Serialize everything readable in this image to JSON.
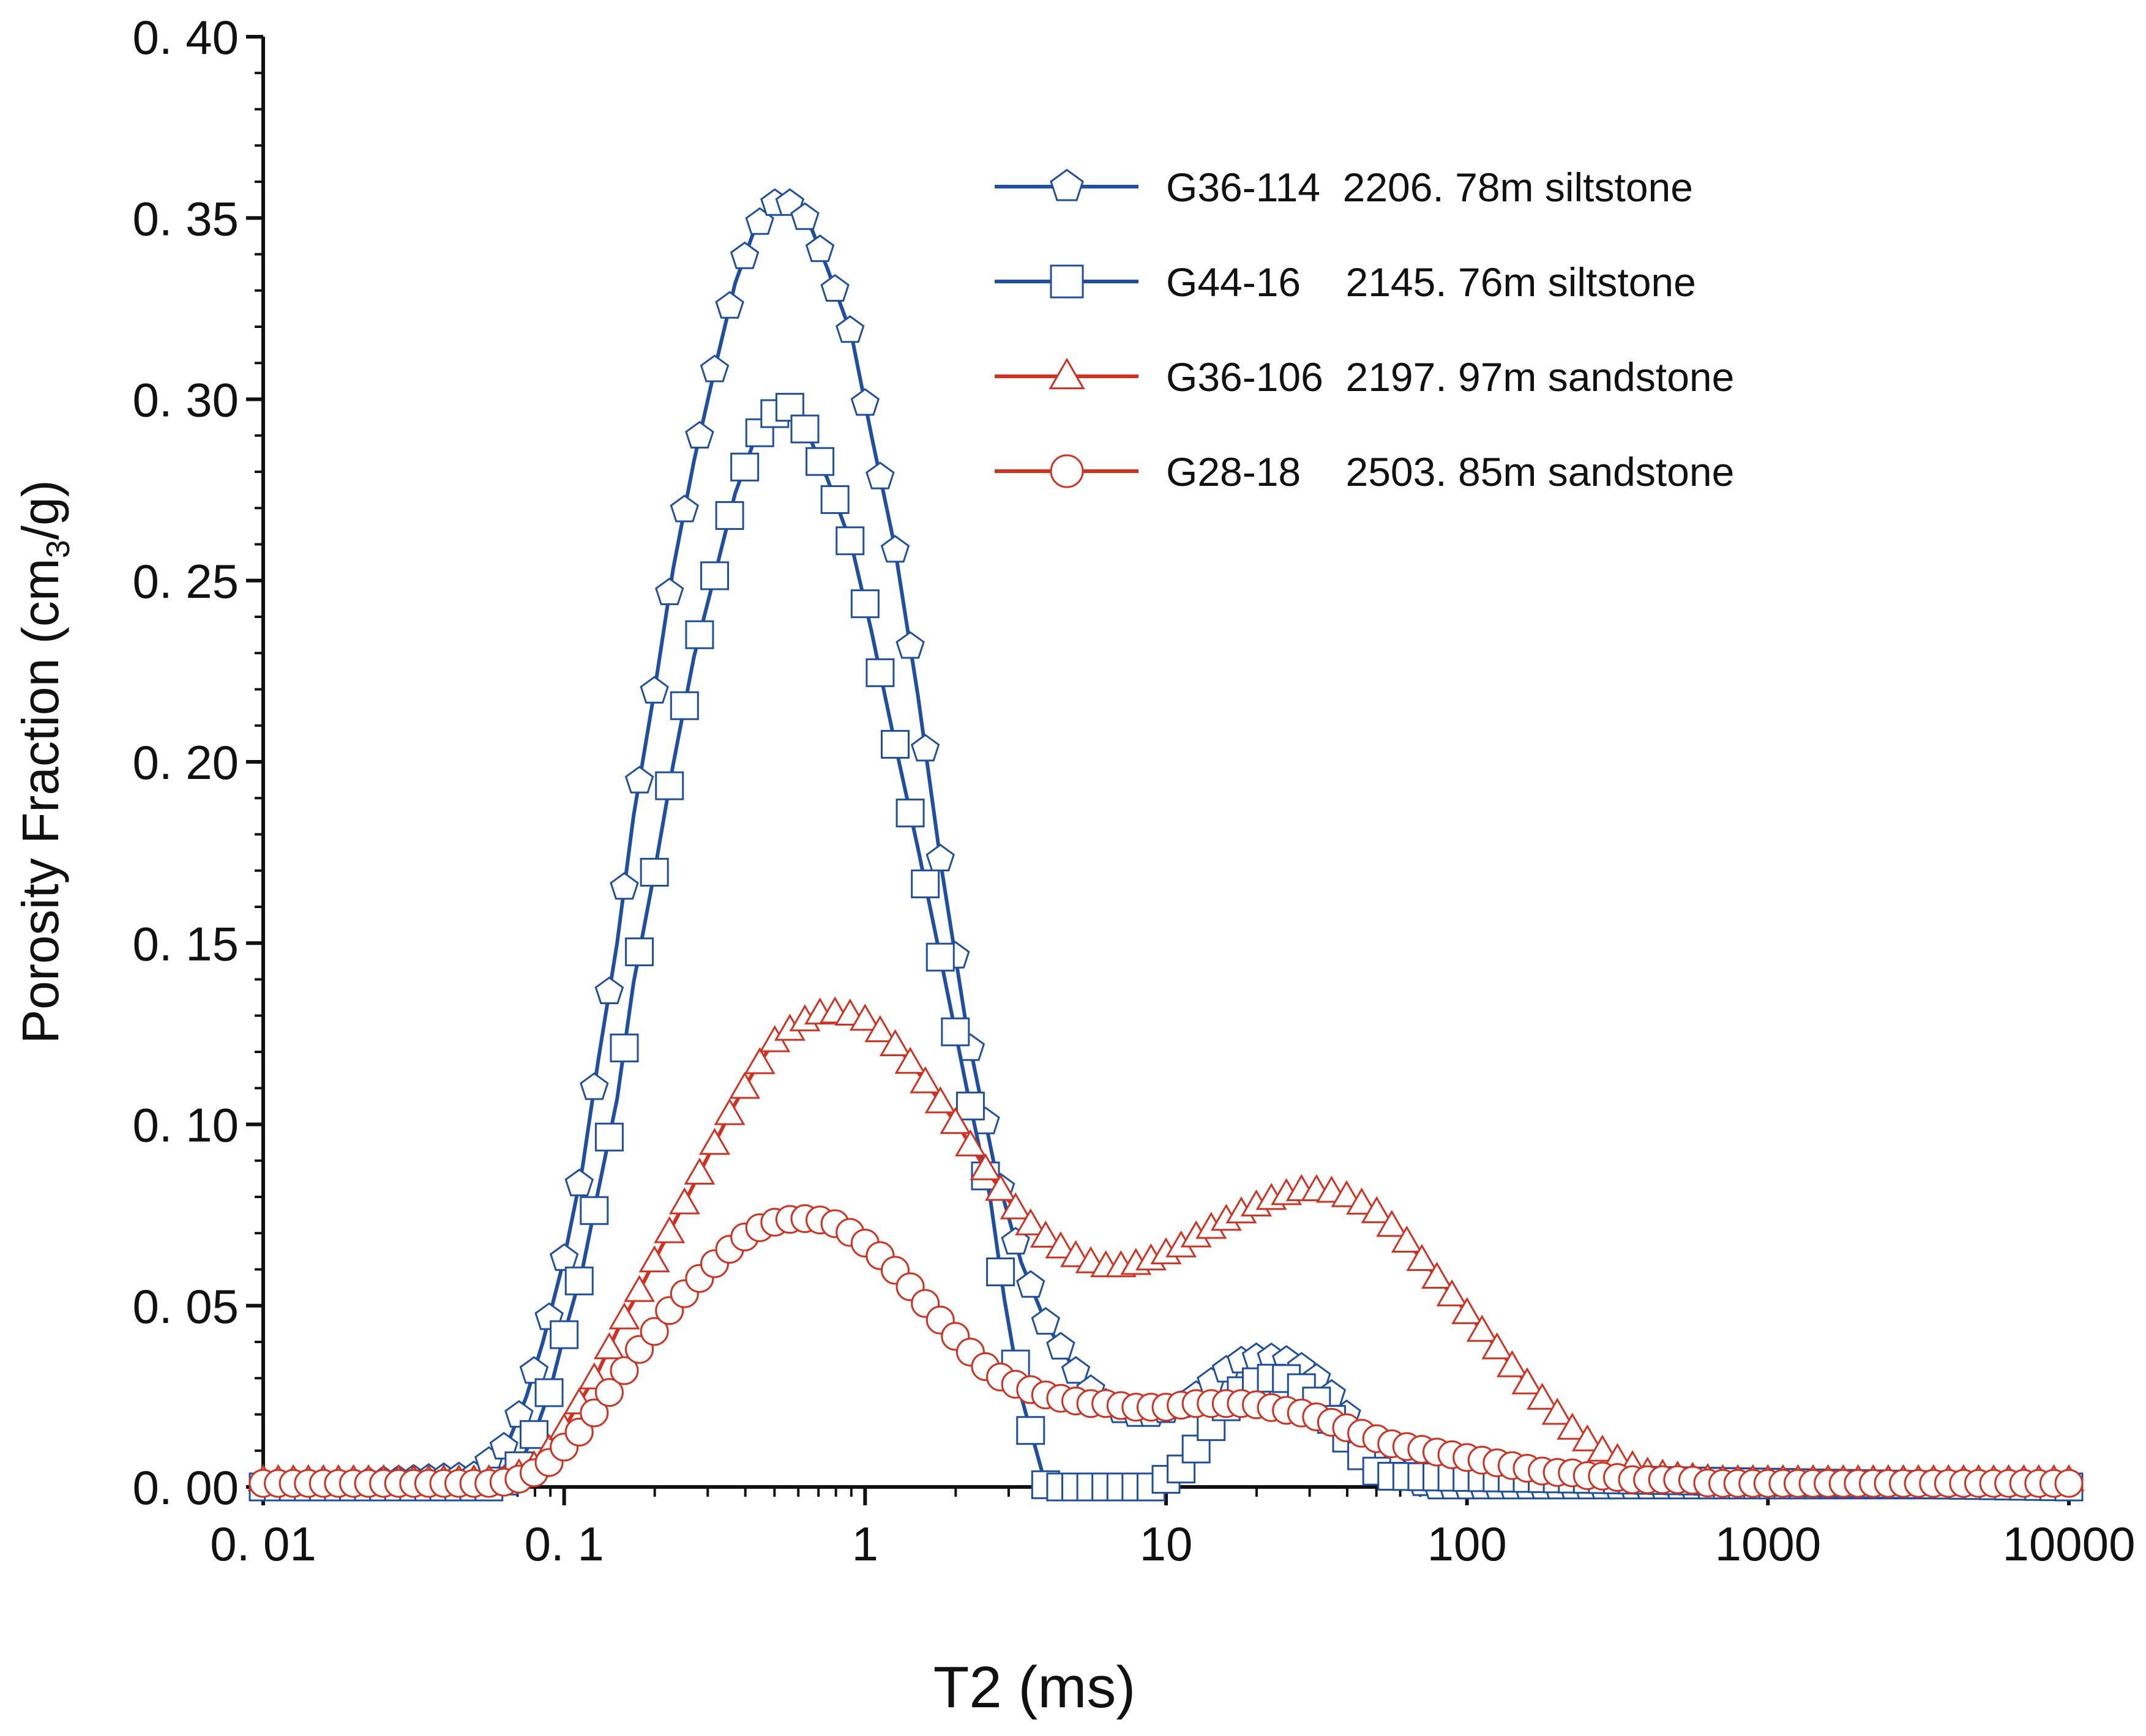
{
  "chart_data": {
    "type": "line",
    "xlabel": "T2 (ms)",
    "ylabel_main": "Porosity Fraction (cm",
    "ylabel_sub": "3",
    "ylabel_tail": "/g)",
    "x_scale": "log",
    "xlim": [
      0.01,
      10000
    ],
    "ylim": [
      0,
      0.4
    ],
    "x_ticks": [
      0.01,
      0.1,
      1,
      10,
      100,
      1000,
      10000
    ],
    "x_tick_labels": [
      "0. 01",
      "0. 1",
      "1",
      "10",
      "100",
      "1000",
      "10000"
    ],
    "y_ticks": [
      0,
      0.05,
      0.1,
      0.15,
      0.2,
      0.25,
      0.3,
      0.35,
      0.4
    ],
    "y_tick_labels": [
      "0. 00",
      "0. 05",
      "0. 10",
      "0. 15",
      "0. 20",
      "0. 25",
      "0. 30",
      "0. 35",
      "0. 40"
    ],
    "grid": false,
    "legend_position": "top-right",
    "series": [
      {
        "name": "G36-114  2206. 78m siltstone",
        "color": "#1f4fa0",
        "marker": "pentagon",
        "x": [
          0.01,
          0.05,
          0.065,
          0.075,
          0.085,
          0.1,
          0.115,
          0.13,
          0.15,
          0.17,
          0.2,
          0.23,
          0.27,
          0.32,
          0.37,
          0.43,
          0.5,
          0.57,
          0.65,
          0.75,
          0.9,
          1.05,
          1.25,
          1.5,
          1.8,
          2.2,
          2.7,
          3.3,
          4.0,
          5.0,
          6.0,
          7.5,
          9.0,
          11,
          13,
          15,
          18,
          21,
          25,
          30,
          36,
          43,
          52,
          62,
          75,
          90,
          10000
        ],
        "y": [
          0.0,
          0.003,
          0.012,
          0.025,
          0.04,
          0.063,
          0.088,
          0.118,
          0.15,
          0.185,
          0.22,
          0.253,
          0.283,
          0.31,
          0.332,
          0.347,
          0.354,
          0.354,
          0.349,
          0.336,
          0.318,
          0.29,
          0.26,
          0.218,
          0.17,
          0.124,
          0.088,
          0.062,
          0.045,
          0.032,
          0.024,
          0.02,
          0.02,
          0.022,
          0.026,
          0.031,
          0.035,
          0.036,
          0.035,
          0.032,
          0.025,
          0.016,
          0.008,
          0.003,
          0.0,
          0.0,
          0.0
        ]
      },
      {
        "name": "G44-16    2145. 76m siltstone",
        "color": "#1f4fa0",
        "marker": "square",
        "x": [
          0.01,
          0.06,
          0.07,
          0.08,
          0.09,
          0.1,
          0.115,
          0.13,
          0.15,
          0.17,
          0.2,
          0.23,
          0.27,
          0.32,
          0.37,
          0.43,
          0.5,
          0.57,
          0.65,
          0.75,
          0.9,
          1.05,
          1.25,
          1.5,
          1.8,
          2.2,
          2.6,
          2.9,
          3.3,
          4.0,
          5.0,
          6.0,
          7.5,
          9.0,
          11,
          13,
          15,
          18,
          21,
          25,
          30,
          36,
          43,
          52,
          10000
        ],
        "y": [
          0.0,
          0.0,
          0.005,
          0.015,
          0.027,
          0.042,
          0.06,
          0.082,
          0.107,
          0.139,
          0.17,
          0.199,
          0.229,
          0.253,
          0.274,
          0.289,
          0.296,
          0.298,
          0.29,
          0.278,
          0.26,
          0.236,
          0.206,
          0.176,
          0.144,
          0.108,
          0.08,
          0.052,
          0.025,
          0.0,
          0.0,
          0.0,
          0.0,
          0.0,
          0.004,
          0.012,
          0.02,
          0.027,
          0.03,
          0.03,
          0.026,
          0.018,
          0.01,
          0.003,
          0.0
        ]
      },
      {
        "name": "G36-106  2197. 97m sandstone",
        "color": "#d43020",
        "marker": "triangle",
        "x": [
          0.01,
          0.03,
          0.05,
          0.065,
          0.08,
          0.095,
          0.11,
          0.13,
          0.15,
          0.18,
          0.21,
          0.25,
          0.3,
          0.36,
          0.43,
          0.5,
          0.6,
          0.72,
          0.85,
          1.0,
          1.2,
          1.45,
          1.75,
          2.1,
          2.5,
          3.0,
          3.6,
          4.3,
          5.2,
          6.2,
          7.5,
          9.0,
          11,
          13,
          16,
          19,
          23,
          28,
          34,
          41,
          50,
          60,
          72,
          87,
          105,
          127,
          153,
          185,
          225,
          270,
          330,
          400,
          500,
          700,
          1000,
          2000,
          10000
        ],
        "y": [
          0.002,
          0.002,
          0.002,
          0.002,
          0.006,
          0.013,
          0.022,
          0.032,
          0.043,
          0.055,
          0.066,
          0.078,
          0.091,
          0.104,
          0.115,
          0.123,
          0.128,
          0.131,
          0.131,
          0.129,
          0.124,
          0.116,
          0.107,
          0.098,
          0.088,
          0.079,
          0.072,
          0.067,
          0.063,
          0.061,
          0.061,
          0.063,
          0.066,
          0.07,
          0.074,
          0.077,
          0.08,
          0.082,
          0.082,
          0.08,
          0.076,
          0.07,
          0.062,
          0.054,
          0.046,
          0.038,
          0.03,
          0.023,
          0.016,
          0.011,
          0.007,
          0.004,
          0.003,
          0.002,
          0.002,
          0.002,
          0.002
        ]
      },
      {
        "name": "G28-18    2503. 85m sandstone",
        "color": "#d43020",
        "marker": "circle",
        "x": [
          0.01,
          0.03,
          0.06,
          0.07,
          0.08,
          0.09,
          0.1,
          0.115,
          0.13,
          0.15,
          0.17,
          0.2,
          0.23,
          0.27,
          0.32,
          0.37,
          0.43,
          0.5,
          0.58,
          0.67,
          0.78,
          0.9,
          1.05,
          1.22,
          1.42,
          1.65,
          1.92,
          2.25,
          2.6,
          3.0,
          3.5,
          4.1,
          4.8,
          5.6,
          6.5,
          7.6,
          8.8,
          10.3,
          12,
          14,
          16.3,
          19,
          22,
          25.7,
          30,
          35,
          40.8,
          47.5,
          55.4,
          64.5,
          75,
          87.5,
          102,
          119,
          139,
          162,
          189,
          220,
          256,
          298,
          347,
          405,
          472,
          550,
          640,
          746,
          870,
          1013,
          1180,
          1375,
          1600,
          2000,
          10000
        ],
        "y": [
          0.001,
          0.001,
          0.001,
          0.002,
          0.004,
          0.007,
          0.011,
          0.016,
          0.022,
          0.029,
          0.036,
          0.043,
          0.05,
          0.056,
          0.062,
          0.067,
          0.071,
          0.073,
          0.074,
          0.074,
          0.073,
          0.07,
          0.066,
          0.061,
          0.055,
          0.049,
          0.043,
          0.037,
          0.032,
          0.029,
          0.027,
          0.025,
          0.024,
          0.023,
          0.023,
          0.022,
          0.022,
          0.022,
          0.023,
          0.023,
          0.023,
          0.023,
          0.022,
          0.021,
          0.02,
          0.018,
          0.016,
          0.014,
          0.012,
          0.011,
          0.01,
          0.009,
          0.008,
          0.007,
          0.006,
          0.005,
          0.004,
          0.004,
          0.003,
          0.003,
          0.002,
          0.002,
          0.002,
          0.002,
          0.001,
          0.001,
          0.001,
          0.001,
          0.001,
          0.001,
          0.001,
          0.001,
          0.001
        ]
      }
    ]
  }
}
